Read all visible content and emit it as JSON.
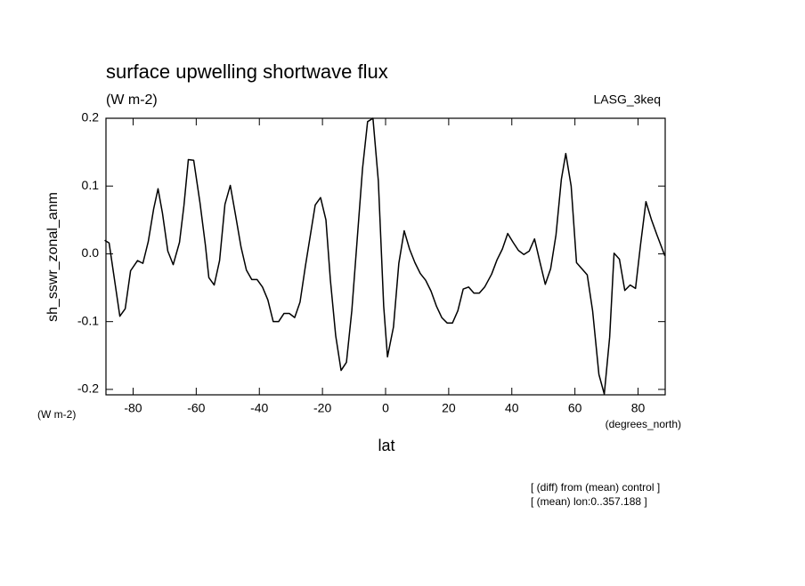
{
  "chart_data": {
    "type": "line",
    "title": "surface upwelling shortwave flux",
    "subtitle": "(W m-2)",
    "annotation_right": "LASG_3keq",
    "y_label": "sh_sswr_zonal_anm",
    "y_units": "(W m-2)",
    "x_label": "lat",
    "x_units": "(degrees_north)",
    "notes": [
      "[ (diff) from (mean) control ]",
      "[ (mean) lon:0..357.188 ]"
    ],
    "xlim": [
      -88.6,
      88.6
    ],
    "ylim": [
      -0.208,
      0.2
    ],
    "xticks": [
      -80,
      -60,
      -40,
      -20,
      0,
      20,
      40,
      60,
      80
    ],
    "yticks": [
      -0.2,
      -0.1,
      {
        "value": 0,
        "label": "0.0"
      },
      0.1,
      0.2
    ],
    "grid": false,
    "series": [
      {
        "name": "sh_sswr_zonal_anm",
        "color": "#000000",
        "x": [
          -89,
          -87.6,
          -84.2,
          -82.5,
          -80.8,
          -78.6,
          -76.9,
          -75.2,
          -73.5,
          -72.1,
          -70.7,
          -69.0,
          -67.3,
          -65.3,
          -63.9,
          -62.5,
          -60.8,
          -58.8,
          -57.1,
          -56.0,
          -54.3,
          -52.6,
          -50.9,
          -49.2,
          -47.5,
          -45.8,
          -44.1,
          -42.4,
          -40.7,
          -39.0,
          -37.3,
          -35.6,
          -33.9,
          -32.2,
          -30.5,
          -28.8,
          -27.1,
          -25.4,
          -22.3,
          -20.6,
          -18.9,
          -17.5,
          -15.8,
          -14.1,
          -12.4,
          -10.7,
          -9.0,
          -7.3,
          -5.7,
          -4.0,
          -2.3,
          -0.6,
          0.6,
          2.5,
          4.2,
          5.9,
          7.6,
          9.3,
          11.0,
          12.7,
          14.4,
          16.1,
          17.8,
          19.5,
          21.2,
          22.9,
          24.6,
          26.3,
          28.0,
          29.7,
          31.4,
          33.6,
          35.3,
          37.0,
          38.7,
          40.4,
          42.1,
          43.8,
          45.5,
          47.2,
          48.9,
          50.6,
          52.3,
          54.0,
          55.7,
          57.1,
          58.8,
          60.5,
          62.2,
          63.9,
          65.6,
          67.6,
          69.3,
          71.0,
          72.4,
          74.1,
          75.8,
          77.5,
          79.2,
          80.8,
          82.5,
          84.2,
          85.9,
          88.5
        ],
        "values": [
          0.02,
          0.016,
          -0.092,
          -0.081,
          -0.025,
          -0.01,
          -0.014,
          0.018,
          0.066,
          0.096,
          0.06,
          0.004,
          -0.016,
          0.017,
          0.071,
          0.139,
          0.138,
          0.075,
          0.013,
          -0.035,
          -0.046,
          -0.01,
          0.073,
          0.101,
          0.056,
          0.01,
          -0.024,
          -0.038,
          -0.038,
          -0.049,
          -0.068,
          -0.1,
          -0.1,
          -0.088,
          -0.088,
          -0.094,
          -0.071,
          -0.018,
          0.072,
          0.083,
          0.05,
          -0.038,
          -0.121,
          -0.172,
          -0.16,
          -0.084,
          0.021,
          0.126,
          0.195,
          0.2,
          0.108,
          -0.077,
          -0.152,
          -0.108,
          -0.014,
          0.034,
          0.007,
          -0.013,
          -0.029,
          -0.039,
          -0.055,
          -0.077,
          -0.094,
          -0.102,
          -0.102,
          -0.084,
          -0.052,
          -0.049,
          -0.058,
          -0.058,
          -0.049,
          -0.03,
          -0.009,
          0.007,
          0.03,
          0.017,
          0.005,
          -0.001,
          0.004,
          0.022,
          -0.012,
          -0.045,
          -0.022,
          0.028,
          0.11,
          0.148,
          0.1,
          -0.013,
          -0.022,
          -0.031,
          -0.084,
          -0.178,
          -0.207,
          -0.123,
          0.001,
          -0.008,
          -0.054,
          -0.046,
          -0.051,
          0.014,
          0.077,
          0.051,
          0.029,
          -0.003
        ]
      }
    ]
  }
}
